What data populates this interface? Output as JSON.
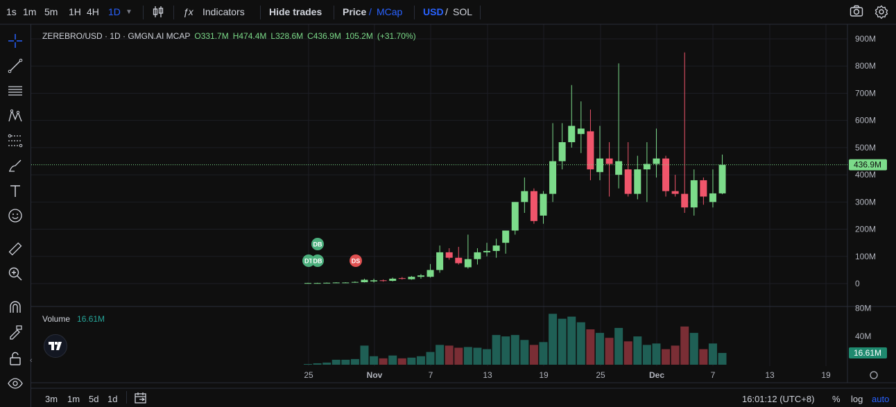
{
  "toolbar": {
    "intervals": [
      "1s",
      "1m",
      "5m",
      "1H",
      "4H",
      "1D"
    ],
    "active_interval": "1D",
    "indicators_label": "Indicators",
    "hide_trades_label": "Hide trades",
    "price_label": "Price",
    "slash": "/",
    "mcap_label": "MCap",
    "usd_label": "USD",
    "sol_label": "SOL"
  },
  "legend": {
    "symbol": "ZEREBRO/USD · 1D · GMGN.AI MCAP",
    "open": "O331.7M",
    "high": "H474.4M",
    "low": "L328.6M",
    "close": "C436.9M",
    "volume": "105.2M",
    "change": "(+31.70%)"
  },
  "volume_legend": {
    "label": "Volume",
    "value": "16.61M"
  },
  "price_axis": {
    "ticks": [
      "900M",
      "800M",
      "700M",
      "600M",
      "500M",
      "400M",
      "300M",
      "200M",
      "100M",
      "0"
    ],
    "last_price_label": "436.9M",
    "volume_ticks": [
      "80M",
      "40M"
    ],
    "last_volume_label": "16.61M"
  },
  "time_axis": {
    "ticks": [
      "25",
      "Nov",
      "7",
      "13",
      "19",
      "25",
      "Dec",
      "7",
      "13",
      "19"
    ]
  },
  "markers": [
    {
      "label": "DB",
      "color": "#4caf7d"
    },
    {
      "label": "DT",
      "color": "#4caf7d"
    },
    {
      "label": "DB",
      "color": "#4caf7d"
    },
    {
      "label": "DS",
      "color": "#e05151"
    }
  ],
  "bottom": {
    "ranges": [
      "3m",
      "1m",
      "5d",
      "1d"
    ],
    "clock": "16:01:12 (UTC+8)",
    "percent": "%",
    "log": "log",
    "auto": "auto"
  },
  "colors": {
    "up": "#7cdb8a",
    "down": "#f0556b",
    "vol_up": "#1f5f55",
    "vol_down": "#7a2e35",
    "accent": "#2962ff"
  },
  "chart_data": {
    "type": "candlestick",
    "unit": "USD market cap (M)",
    "candles": [
      {
        "o": 2,
        "h": 3,
        "l": 1,
        "c": 2,
        "v": 1
      },
      {
        "o": 2,
        "h": 3,
        "l": 1,
        "c": 2,
        "v": 2
      },
      {
        "o": 2,
        "h": 4,
        "l": 1,
        "c": 3,
        "v": 3
      },
      {
        "o": 3,
        "h": 5,
        "l": 2,
        "c": 4,
        "v": 7
      },
      {
        "o": 4,
        "h": 5,
        "l": 3,
        "c": 4,
        "v": 7
      },
      {
        "o": 4,
        "h": 8,
        "l": 3,
        "c": 6,
        "v": 8
      },
      {
        "o": 5,
        "h": 18,
        "l": 4,
        "c": 14,
        "v": 27
      },
      {
        "o": 8,
        "h": 18,
        "l": 4,
        "c": 12,
        "v": 12
      },
      {
        "o": 12,
        "h": 15,
        "l": 7,
        "c": 10,
        "v": 9
      },
      {
        "o": 10,
        "h": 22,
        "l": 8,
        "c": 18,
        "v": 13
      },
      {
        "o": 20,
        "h": 24,
        "l": 15,
        "c": 18,
        "v": 9
      },
      {
        "o": 16,
        "h": 28,
        "l": 14,
        "c": 25,
        "v": 10
      },
      {
        "o": 25,
        "h": 35,
        "l": 18,
        "c": 30,
        "v": 12
      },
      {
        "o": 25,
        "h": 72,
        "l": 22,
        "c": 50,
        "v": 18
      },
      {
        "o": 50,
        "h": 140,
        "l": 40,
        "c": 115,
        "v": 28
      },
      {
        "o": 115,
        "h": 130,
        "l": 88,
        "c": 95,
        "v": 27
      },
      {
        "o": 95,
        "h": 135,
        "l": 70,
        "c": 75,
        "v": 24
      },
      {
        "o": 60,
        "h": 180,
        "l": 55,
        "c": 90,
        "v": 25
      },
      {
        "o": 90,
        "h": 130,
        "l": 70,
        "c": 115,
        "v": 24
      },
      {
        "o": 115,
        "h": 150,
        "l": 100,
        "c": 120,
        "v": 22
      },
      {
        "o": 120,
        "h": 165,
        "l": 95,
        "c": 140,
        "v": 42
      },
      {
        "o": 150,
        "h": 195,
        "l": 110,
        "c": 195,
        "v": 40
      },
      {
        "o": 195,
        "h": 300,
        "l": 180,
        "c": 300,
        "v": 42
      },
      {
        "o": 300,
        "h": 390,
        "l": 260,
        "c": 340,
        "v": 35
      },
      {
        "o": 340,
        "h": 350,
        "l": 220,
        "c": 230,
        "v": 28
      },
      {
        "o": 250,
        "h": 340,
        "l": 220,
        "c": 330,
        "v": 32
      },
      {
        "o": 330,
        "h": 590,
        "l": 300,
        "c": 450,
        "v": 72
      },
      {
        "o": 450,
        "h": 590,
        "l": 420,
        "c": 520,
        "v": 65
      },
      {
        "o": 520,
        "h": 730,
        "l": 500,
        "c": 580,
        "v": 68
      },
      {
        "o": 550,
        "h": 670,
        "l": 480,
        "c": 570,
        "v": 60
      },
      {
        "o": 560,
        "h": 640,
        "l": 380,
        "c": 420,
        "v": 50
      },
      {
        "o": 410,
        "h": 580,
        "l": 380,
        "c": 460,
        "v": 45
      },
      {
        "o": 460,
        "h": 520,
        "l": 320,
        "c": 440,
        "v": 38
      },
      {
        "o": 400,
        "h": 810,
        "l": 350,
        "c": 450,
        "v": 52
      },
      {
        "o": 420,
        "h": 520,
        "l": 320,
        "c": 330,
        "v": 33
      },
      {
        "o": 330,
        "h": 470,
        "l": 310,
        "c": 420,
        "v": 40
      },
      {
        "o": 420,
        "h": 520,
        "l": 300,
        "c": 440,
        "v": 28
      },
      {
        "o": 440,
        "h": 570,
        "l": 390,
        "c": 460,
        "v": 30
      },
      {
        "o": 460,
        "h": 470,
        "l": 320,
        "c": 340,
        "v": 22
      },
      {
        "o": 340,
        "h": 400,
        "l": 320,
        "c": 330,
        "v": 27
      },
      {
        "o": 330,
        "h": 850,
        "l": 260,
        "c": 280,
        "v": 54
      },
      {
        "o": 280,
        "h": 420,
        "l": 250,
        "c": 380,
        "v": 45
      },
      {
        "o": 380,
        "h": 390,
        "l": 290,
        "c": 320,
        "v": 22
      },
      {
        "o": 300,
        "h": 420,
        "l": 280,
        "c": 331.7,
        "v": 30
      },
      {
        "o": 331.7,
        "h": 474.4,
        "l": 328.6,
        "c": 436.9,
        "v": 16.61
      }
    ]
  }
}
